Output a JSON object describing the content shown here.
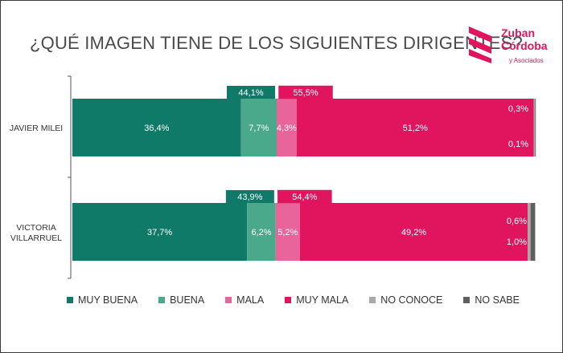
{
  "title": "¿QUÉ IMAGEN TIENE DE LOS SIGUIENTES DIRIGENTES?",
  "logo": {
    "line1": "Zuban",
    "line2": "Córdoba",
    "sub": "y Asociados"
  },
  "colors": {
    "muy_buena": "#0f7a67",
    "buena": "#4aa98a",
    "mala": "#e8649b",
    "muy_mala": "#e0155d",
    "no_conoce": "#a9a9a9",
    "no_sabe": "#5f5f5f",
    "positive_box": "#0f7a67",
    "negative_box": "#e0155d"
  },
  "chart_data": {
    "type": "bar",
    "orientation": "horizontal-stacked",
    "categories": [
      "JAVIER MILEI",
      "VICTORIA VILLARRUEL"
    ],
    "series": [
      {
        "name": "MUY BUENA",
        "values": [
          36.4,
          37.7
        ],
        "labels": [
          "36,4%",
          "37,7%"
        ]
      },
      {
        "name": "BUENA",
        "values": [
          7.7,
          6.2
        ],
        "labels": [
          "7,7%",
          "6,2%"
        ]
      },
      {
        "name": "MALA",
        "values": [
          4.3,
          5.2
        ],
        "labels": [
          "4,3%",
          "5,2%"
        ]
      },
      {
        "name": "MUY MALA",
        "values": [
          51.2,
          49.2
        ],
        "labels": [
          "51,2%",
          "49,2%"
        ]
      },
      {
        "name": "NO CONOCE",
        "values": [
          0.3,
          0.6
        ],
        "labels": [
          "0,3%",
          "0,6%"
        ]
      },
      {
        "name": "NO SABE",
        "values": [
          0.1,
          1.0
        ],
        "labels": [
          "0,1%",
          "1,0%"
        ]
      }
    ],
    "positive_totals": [
      {
        "value": 44.1,
        "label": "44,1%"
      },
      {
        "value": 43.9,
        "label": "43,9%"
      }
    ],
    "negative_totals": [
      {
        "value": 55.5,
        "label": "55,5%"
      },
      {
        "value": 54.4,
        "label": "54,4%"
      }
    ],
    "xlim": [
      0,
      100
    ],
    "legend_position": "bottom",
    "grid": false
  }
}
